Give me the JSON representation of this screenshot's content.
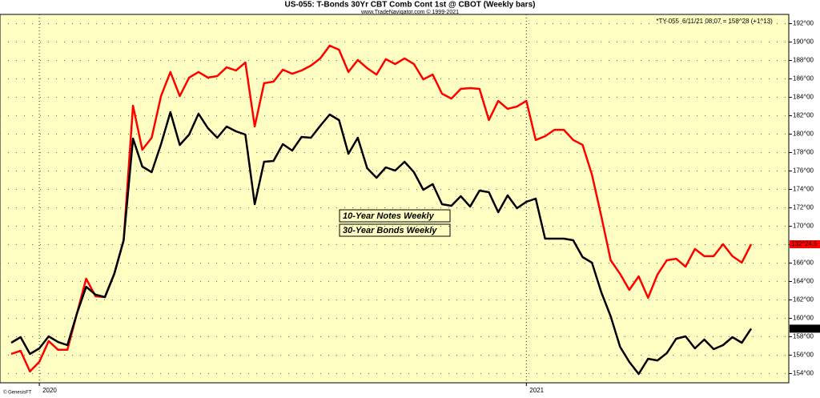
{
  "chart_data": {
    "type": "line",
    "title": "US-055:  T-Bonds 30Yr CBT Comb Cont 1st @ CBOT  (Weekly bars)",
    "subtitle": "www.TradeNavigator.com © 1999-2021",
    "info_symbol": "*TY-055",
    "info_quote": "6/11/21 08:07 = 158^28 (+1^13)",
    "credit": "© GenesisFT",
    "categories": [
      null,
      null,
      null,
      "2020",
      null,
      null,
      null,
      null,
      null,
      null,
      null,
      null,
      null,
      null,
      null,
      null,
      null,
      null,
      null,
      null,
      null,
      null,
      null,
      null,
      null,
      null,
      null,
      null,
      null,
      null,
      null,
      null,
      null,
      null,
      null,
      null,
      null,
      null,
      null,
      null,
      null,
      null,
      null,
      null,
      null,
      null,
      null,
      null,
      null,
      null,
      null,
      null,
      null,
      null,
      null,
      "2021",
      null,
      null,
      null,
      null,
      null,
      null,
      null,
      null,
      null,
      null,
      null,
      null,
      null,
      null,
      null,
      null,
      null,
      null,
      null,
      null,
      null,
      null,
      null,
      null
    ],
    "ylim": [
      153,
      193
    ],
    "yticks": [
      {
        "value": 154,
        "label": "154^00"
      },
      {
        "value": 156,
        "label": "156^00"
      },
      {
        "value": 158,
        "label": "158^00"
      },
      {
        "value": 160,
        "label": "160^00"
      },
      {
        "value": 162,
        "label": "162^00"
      },
      {
        "value": 164,
        "label": "164^00"
      },
      {
        "value": 166,
        "label": "166^00"
      },
      {
        "value": 168,
        "label": "168^00"
      },
      {
        "value": 170,
        "label": "170^00"
      },
      {
        "value": 172,
        "label": "172^00"
      },
      {
        "value": 174,
        "label": "174^00"
      },
      {
        "value": 176,
        "label": "176^00"
      },
      {
        "value": 178,
        "label": "178^00"
      },
      {
        "value": 180,
        "label": "180^00"
      },
      {
        "value": 182,
        "label": "182^00"
      },
      {
        "value": 184,
        "label": "184^00"
      },
      {
        "value": 186,
        "label": "186^00"
      },
      {
        "value": 188,
        "label": "188^00"
      },
      {
        "value": 190,
        "label": "190^00"
      },
      {
        "value": 192,
        "label": "192^00"
      }
    ],
    "y2lim": [
      127.35,
      141.75
    ],
    "grid": true,
    "series": [
      {
        "name": "10-Year Notes Weekly",
        "color": "#ff0000",
        "axis": "y2",
        "values": [
          128.48,
          128.6,
          127.79,
          128.17,
          128.98,
          128.64,
          128.64,
          130.04,
          131.42,
          130.73,
          130.7,
          131.61,
          132.92,
          138.18,
          136.46,
          136.93,
          138.56,
          139.5,
          138.56,
          139.28,
          139.5,
          139.28,
          139.34,
          139.68,
          139.56,
          139.87,
          137.37,
          139.06,
          139.12,
          139.59,
          139.43,
          139.56,
          139.75,
          140.03,
          140.53,
          140.37,
          139.5,
          139.97,
          139.65,
          139.4,
          140.0,
          139.81,
          140.03,
          139.81,
          139.21,
          139.4,
          138.65,
          138.46,
          138.84,
          138.87,
          138.84,
          137.62,
          138.37,
          138.06,
          138.15,
          138.37,
          136.84,
          136.99,
          137.24,
          137.24,
          136.84,
          136.65,
          135.49,
          133.86,
          132.14,
          131.61,
          130.98,
          131.51,
          130.67,
          131.58,
          132.14,
          132.2,
          131.89,
          132.58,
          132.3,
          132.3,
          132.77,
          132.3,
          132.05,
          132.766
        ],
        "value_labels": [
          null,
          null,
          null,
          null,
          null,
          null,
          null,
          null,
          null,
          null,
          null,
          null,
          null,
          null,
          null,
          null,
          null,
          null,
          null,
          null,
          null,
          null,
          null,
          null,
          null,
          null,
          null,
          null,
          null,
          null,
          null,
          null,
          null,
          null,
          null,
          null,
          null,
          null,
          null,
          null,
          null,
          null,
          null,
          null,
          null,
          null,
          null,
          null,
          null,
          null,
          null,
          null,
          null,
          null,
          null,
          null,
          null,
          null,
          null,
          null,
          null,
          null,
          null,
          null,
          null,
          null,
          null,
          null,
          null,
          null,
          null,
          null,
          null,
          null,
          null,
          null,
          null,
          null,
          null,
          "132^24.5"
        ]
      },
      {
        "name": "30-Year Bonds Weekly",
        "color": "#000000",
        "values": [
          157.35,
          157.96,
          156.13,
          156.74,
          158.04,
          157.43,
          157.09,
          160.48,
          163.43,
          162.57,
          162.3,
          164.83,
          168.48,
          179.52,
          176.48,
          175.87,
          178.91,
          182.39,
          178.83,
          179.96,
          182.22,
          180.65,
          179.61,
          180.83,
          180.3,
          179.96,
          172.39,
          177.0,
          177.09,
          178.91,
          178.22,
          179.7,
          179.61,
          180.91,
          182.13,
          181.52,
          177.87,
          179.61,
          176.3,
          175.26,
          176.39,
          176.04,
          177.0,
          175.87,
          173.96,
          174.57,
          172.39,
          172.22,
          173.26,
          172.13,
          173.87,
          173.7,
          171.52,
          173.35,
          171.96,
          172.65,
          173.0,
          168.65,
          168.65,
          168.65,
          168.48,
          166.65,
          166.04,
          162.83,
          160.22,
          156.91,
          155.26,
          153.96,
          155.61,
          155.43,
          156.22,
          157.78,
          158.04,
          156.74,
          157.7,
          156.65,
          157.09,
          157.96,
          157.35,
          158.875
        ],
        "value_labels": [
          null,
          null,
          null,
          null,
          null,
          null,
          null,
          null,
          null,
          null,
          null,
          null,
          null,
          null,
          null,
          null,
          null,
          null,
          null,
          null,
          null,
          null,
          null,
          null,
          null,
          null,
          null,
          null,
          null,
          null,
          null,
          null,
          null,
          null,
          null,
          null,
          null,
          null,
          null,
          null,
          null,
          null,
          null,
          null,
          null,
          null,
          null,
          null,
          null,
          null,
          null,
          null,
          null,
          null,
          null,
          null,
          null,
          null,
          null,
          null,
          null,
          null,
          null,
          null,
          null,
          null,
          null,
          null,
          null,
          null,
          null,
          null,
          null,
          null,
          null,
          null,
          null,
          null,
          null,
          "158^28"
        ]
      }
    ]
  }
}
